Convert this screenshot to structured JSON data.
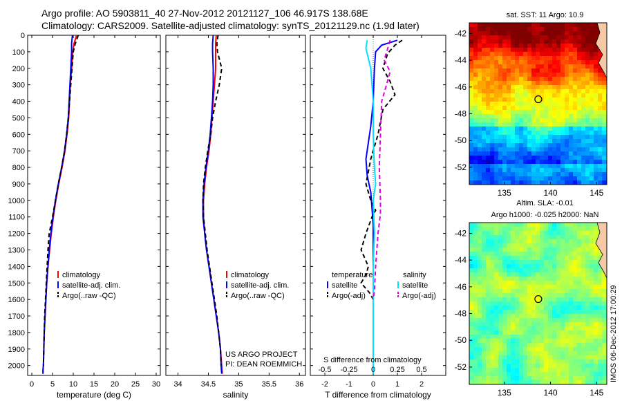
{
  "header": {
    "line1": "Argo profile: AO 5903811_40 27-Nov-2012 20121127_106 46.917S 138.68E",
    "line2": "Climatology: CARS2009. Satellite-adjusted climatology: synTS_20121129.nc (1.9d later)"
  },
  "footer": {
    "stamp": "IMOS 06-Dec-2012 17:00:29",
    "project_line1": "US ARGO PROJECT",
    "project_line2": "PI: DEAN ROEMMICH"
  },
  "colors": {
    "climatology": "#ff0000",
    "satellite": "#0000ff",
    "argo": "#000000",
    "s_satellite": "#00e0ff",
    "s_argo": "#e000e0"
  },
  "chart_data": [
    {
      "type": "line",
      "id": "temperature",
      "xlabel": "temperature (deg C)",
      "xlim": [
        -1,
        31
      ],
      "xticks": [
        0,
        5,
        10,
        15,
        20,
        25,
        30
      ],
      "ylim": [
        2060,
        0
      ],
      "yticks": [
        0,
        100,
        200,
        300,
        400,
        500,
        600,
        700,
        800,
        900,
        1000,
        1100,
        1200,
        1300,
        1400,
        1500,
        1600,
        1700,
        1800,
        1900,
        2000
      ],
      "legend": [
        "climatology",
        "satellite-adj. clim.",
        "Argo(..raw -QC)"
      ],
      "series": [
        {
          "name": "climatology",
          "style": "solid",
          "color": "#ff0000",
          "x": [
            10.8,
            10.2,
            9.9,
            9.6,
            9.3,
            9.1,
            8.9,
            8.5,
            8.0,
            7.3,
            6.5,
            5.8,
            5.2,
            4.7,
            4.3,
            3.9,
            3.6,
            3.4,
            3.2,
            3.0,
            2.9,
            2.8,
            2.7,
            2.7
          ],
          "y": [
            0,
            50,
            100,
            200,
            300,
            400,
            500,
            600,
            700,
            800,
            900,
            1000,
            1100,
            1200,
            1300,
            1400,
            1500,
            1600,
            1700,
            1800,
            1900,
            2000,
            2030,
            2050
          ]
        },
        {
          "name": "satellite-adj. clim.",
          "style": "solid",
          "color": "#0000ff",
          "x": [
            9.8,
            9.6,
            9.6,
            9.4,
            9.2,
            9.0,
            8.8,
            8.4,
            7.9,
            7.2,
            6.4,
            5.7,
            5.1,
            4.6,
            4.2,
            3.9,
            3.6,
            3.4,
            3.2,
            3.0,
            2.9,
            2.8,
            2.7,
            2.7
          ],
          "y": [
            0,
            50,
            100,
            200,
            300,
            400,
            500,
            600,
            700,
            800,
            900,
            1000,
            1100,
            1200,
            1300,
            1400,
            1500,
            1600,
            1700,
            1800,
            1900,
            2000,
            2030,
            2050
          ]
        },
        {
          "name": "Argo(..raw -QC)",
          "style": "dashed",
          "color": "#000000",
          "x": [
            11.2,
            10.5,
            10.0,
            9.7,
            9.4,
            9.1,
            8.8,
            8.4,
            7.9,
            7.2,
            6.4,
            5.7,
            5.0,
            4.2,
            3.9,
            3.7,
            3.5,
            3.3,
            3.1,
            3.0,
            2.9,
            2.8
          ],
          "y": [
            0,
            50,
            100,
            200,
            300,
            400,
            500,
            600,
            700,
            800,
            900,
            1000,
            1100,
            1200,
            1300,
            1400,
            1500,
            1600,
            1700,
            1800,
            1900,
            2000
          ]
        }
      ]
    },
    {
      "type": "line",
      "id": "salinity",
      "xlabel": "salinity",
      "xlim": [
        33.8,
        36.1
      ],
      "xticks": [
        34,
        34.5,
        35,
        35.5,
        36
      ],
      "ylim": [
        2060,
        0
      ],
      "legend": [
        "climatology",
        "satellite-adj. clim.",
        "Argo(..raw -QC)"
      ],
      "series": [
        {
          "name": "climatology",
          "style": "solid",
          "color": "#ff0000",
          "x": [
            34.63,
            34.62,
            34.62,
            34.62,
            34.6,
            34.58,
            34.56,
            34.54,
            34.51,
            34.47,
            34.44,
            34.42,
            34.42,
            34.44,
            34.47,
            34.51,
            34.55,
            34.59,
            34.63,
            34.67,
            34.7,
            34.72,
            34.73
          ],
          "y": [
            0,
            50,
            100,
            200,
            300,
            400,
            500,
            600,
            700,
            800,
            900,
            1000,
            1100,
            1200,
            1300,
            1400,
            1500,
            1600,
            1700,
            1800,
            1900,
            2000,
            2050
          ]
        },
        {
          "name": "satellite-adj. clim.",
          "style": "solid",
          "color": "#0000ff",
          "x": [
            34.58,
            34.57,
            34.57,
            34.58,
            34.58,
            34.57,
            34.55,
            34.53,
            34.5,
            34.46,
            34.43,
            34.41,
            34.41,
            34.44,
            34.47,
            34.51,
            34.55,
            34.59,
            34.63,
            34.67,
            34.7,
            34.71,
            34.72
          ],
          "y": [
            0,
            50,
            100,
            200,
            300,
            400,
            500,
            600,
            700,
            800,
            900,
            1000,
            1100,
            1200,
            1300,
            1400,
            1500,
            1600,
            1700,
            1800,
            1900,
            2000,
            2050
          ]
        },
        {
          "name": "Argo(..raw -QC)",
          "style": "dashed",
          "color": "#000000",
          "x": [
            34.66,
            34.64,
            34.65,
            34.72,
            34.68,
            34.62,
            34.57,
            34.54,
            34.49,
            34.45,
            34.42,
            34.41,
            34.42,
            34.45,
            34.48,
            34.52,
            34.56,
            34.6,
            34.64,
            34.67,
            34.7,
            34.71
          ],
          "y": [
            0,
            50,
            100,
            200,
            300,
            400,
            500,
            600,
            700,
            800,
            900,
            1000,
            1100,
            1200,
            1300,
            1400,
            1500,
            1600,
            1700,
            1800,
            1900,
            2000
          ]
        }
      ]
    },
    {
      "type": "line",
      "id": "difference",
      "xlabel": "T difference from climatology",
      "x2label": "S difference from climatology",
      "xlim": [
        -2.6,
        3.0
      ],
      "xticks": [
        -2,
        -1,
        0,
        1,
        2
      ],
      "x2ticks": [
        "-0.5",
        "-0.25",
        "0",
        "0.25",
        "0.5"
      ],
      "x2tickpos": [
        -2,
        -1,
        0,
        1,
        2
      ],
      "ylim": [
        2060,
        0
      ],
      "legend_headers": [
        "temperature",
        "salinity"
      ],
      "legend_t": [
        "satellite",
        "Argo(-adj)"
      ],
      "legend_s": [
        "satellite",
        "Argo(-adj)"
      ],
      "series": [
        {
          "name": "T satellite",
          "style": "solid",
          "color": "#0000ff",
          "x": [
            1.0,
            0.35,
            0.1,
            0.05,
            0.0,
            -0.1,
            -0.2,
            -0.3,
            -0.25,
            -0.1,
            -0.05,
            0.0,
            0.0,
            0.0,
            0.0,
            0.0,
            0.0,
            0.0,
            0.0
          ],
          "y": [
            30,
            60,
            100,
            200,
            400,
            550,
            650,
            750,
            850,
            950,
            1050,
            1150,
            1300,
            1400,
            1500,
            1600,
            1800,
            1950,
            2050
          ]
        },
        {
          "name": "T Argo(-adj)",
          "style": "dashed",
          "color": "#000000",
          "x": [
            1.2,
            0.9,
            0.6,
            0.4,
            0.7,
            0.9,
            0.4,
            0.2,
            -0.1,
            -0.3,
            -0.1,
            0.1,
            -0.05,
            -0.3,
            -0.5,
            -0.35,
            -0.2,
            -0.3,
            -0.5,
            -0.15,
            0.0
          ],
          "y": [
            30,
            60,
            110,
            200,
            280,
            360,
            450,
            600,
            750,
            900,
            1000,
            1060,
            1100,
            1200,
            1300,
            1350,
            1400,
            1450,
            1500,
            1560,
            1600
          ]
        },
        {
          "name": "S satellite",
          "style": "solid",
          "color": "#00e0ff",
          "x": [
            -0.25,
            -0.3,
            -0.1,
            0.0,
            0.0,
            0.05,
            0.1,
            0.0,
            0.05,
            0.0,
            0.0,
            0.0,
            0.0
          ],
          "y": [
            30,
            80,
            200,
            400,
            600,
            800,
            900,
            1000,
            1200,
            1400,
            1600,
            1800,
            2050
          ]
        },
        {
          "name": "S Argo(-adj)",
          "style": "dashed",
          "color": "#e000e0",
          "x": [
            0.7,
            0.6,
            0.45,
            0.7,
            0.55,
            0.35,
            0.3,
            0.25,
            0.3,
            0.3,
            0.2,
            0.1,
            0.05,
            0.0
          ],
          "y": [
            30,
            80,
            150,
            220,
            300,
            400,
            600,
            800,
            1000,
            1080,
            1200,
            1400,
            1550,
            1600
          ]
        }
      ]
    },
    {
      "type": "heatmap",
      "id": "sst_map",
      "title": "sat. SST: 11 Argo: 10.9",
      "xlim": [
        131.2,
        146.1
      ],
      "xticks": [
        135,
        140,
        145
      ],
      "ylim": [
        -53.3,
        -41.2
      ],
      "yticks": [
        -42,
        -44,
        -46,
        -48,
        -50,
        -52
      ],
      "marker": {
        "lon": 138.68,
        "lat": -46.917
      }
    },
    {
      "type": "heatmap",
      "id": "sla_map",
      "title": "Altim. SLA: -0.01",
      "subtitle": "Argo h1000: -0.025 h2000: NaN",
      "xlim": [
        131.2,
        146.1
      ],
      "xticks": [
        135,
        140,
        145
      ],
      "ylim": [
        -53.3,
        -41.2
      ],
      "yticks": [
        -42,
        -44,
        -46,
        -48,
        -50,
        -52
      ],
      "marker": {
        "lon": 138.68,
        "lat": -46.917
      }
    }
  ]
}
